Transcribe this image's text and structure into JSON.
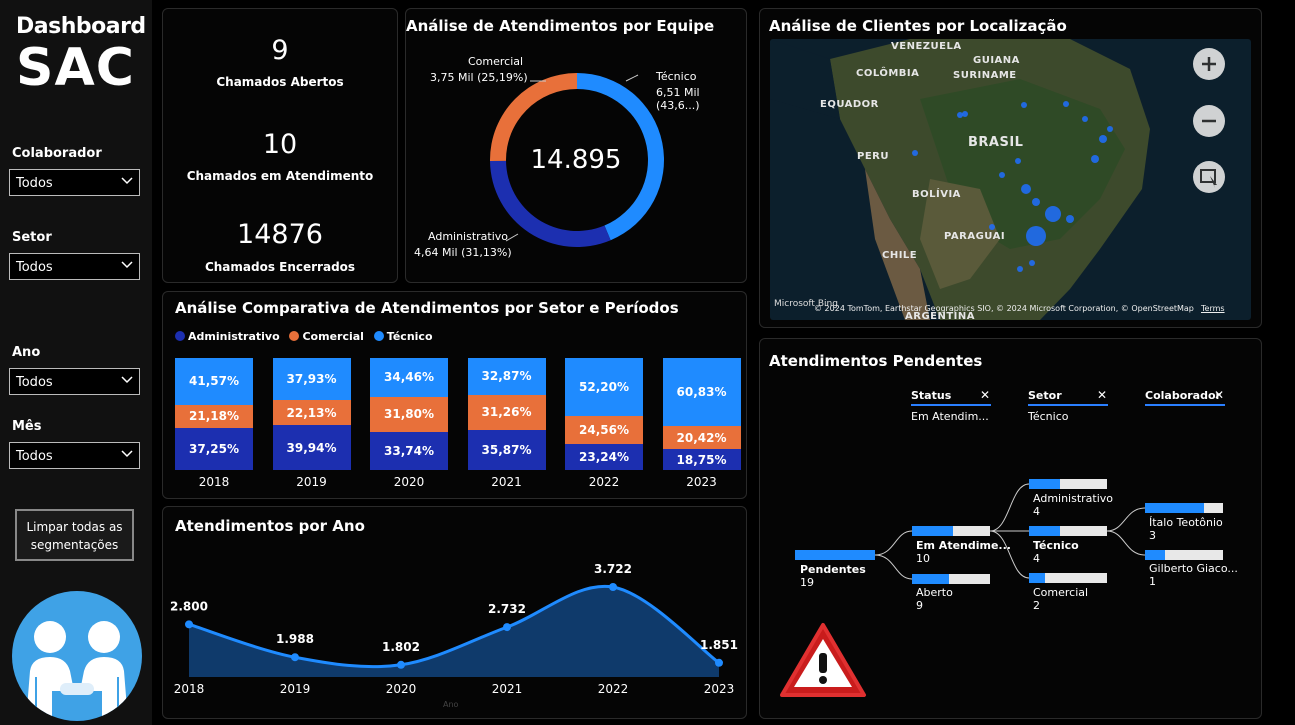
{
  "sidebar": {
    "title_top": "Dashboard",
    "title_main": "SAC",
    "filters": [
      {
        "label": "Colaborador",
        "value": "Todos"
      },
      {
        "label": "Setor",
        "value": "Todos"
      },
      {
        "label": "Ano",
        "value": "Todos"
      },
      {
        "label": "Mês",
        "value": "Todos"
      }
    ],
    "clear_button": "Limpar todas as segmentações"
  },
  "kpis": [
    {
      "value": "9",
      "label": "Chamados Abertos"
    },
    {
      "value": "10",
      "label": "Chamados em Atendimento"
    },
    {
      "value": "14876",
      "label": "Chamados Encerrados"
    }
  ],
  "donut": {
    "title": "Análise de Atendimentos por Equipe",
    "center": "14.895",
    "slices": [
      {
        "name": "Técnico",
        "label": "6,51 Mil (43,6...)",
        "pct": 43.68,
        "color": "#1f8bff"
      },
      {
        "name": "Administrativo",
        "label": "4,64 Mil (31,13%)",
        "pct": 31.13,
        "color": "#1c2fb0"
      },
      {
        "name": "Comercial",
        "label": "3,75 Mil (25,19%)",
        "pct": 25.19,
        "color": "#e8703a"
      }
    ]
  },
  "map": {
    "title": "Análise de Clientes por Localização",
    "countries": [
      "VENEZUELA",
      "GUIANA",
      "COLÔMBIA",
      "SURINAME",
      "EQUADOR",
      "PERU",
      "BRASIL",
      "BOLÍVIA",
      "PARAGUAI",
      "CHILE",
      "ARGENTINA"
    ],
    "attribution": "© 2024 TomTom, Earthstar Geographics SIO, © 2024 Microsoft Corporation, © OpenStreetMap",
    "terms": "Terms",
    "brand": "Microsoft Bing"
  },
  "stacked": {
    "title": "Análise Comparativa de Atendimentos por Setor e Períodos",
    "legend": [
      {
        "name": "Administrativo",
        "color": "#1c2fb0"
      },
      {
        "name": "Comercial",
        "color": "#e8703a"
      },
      {
        "name": "Técnico",
        "color": "#1f8bff"
      }
    ],
    "years": [
      {
        "year": "2018",
        "adm": "37,25%",
        "com": "21,18%",
        "tec": "41,57%",
        "a": 37.25,
        "c": 21.18,
        "t": 41.57
      },
      {
        "year": "2019",
        "adm": "39,94%",
        "com": "22,13%",
        "tec": "37,93%",
        "a": 39.94,
        "c": 22.13,
        "t": 37.93
      },
      {
        "year": "2020",
        "adm": "33,74%",
        "com": "31,80%",
        "tec": "34,46%",
        "a": 33.74,
        "c": 31.8,
        "t": 34.46
      },
      {
        "year": "2021",
        "adm": "35,87%",
        "com": "31,26%",
        "tec": "32,87%",
        "a": 35.87,
        "c": 31.26,
        "t": 32.87
      },
      {
        "year": "2022",
        "adm": "23,24%",
        "com": "24,56%",
        "tec": "52,20%",
        "a": 23.24,
        "c": 24.56,
        "t": 52.2
      },
      {
        "year": "2023",
        "adm": "18,75%",
        "com": "20,42%",
        "tec": "60,83%",
        "a": 18.75,
        "c": 20.42,
        "t": 60.83
      }
    ]
  },
  "chart_data": {
    "type": "area",
    "title": "Atendimentos por Ano",
    "xlabel": "Ano",
    "categories": [
      "2018",
      "2019",
      "2020",
      "2021",
      "2022",
      "2023"
    ],
    "values": [
      2800,
      1988,
      1802,
      2732,
      3722,
      1851
    ],
    "labels": [
      "2.800",
      "1.988",
      "1.802",
      "2.732",
      "3.722",
      "1.851"
    ]
  },
  "pending": {
    "title": "Atendimentos Pendentes",
    "headers": [
      {
        "title": "Status",
        "value": "Em Atendim..."
      },
      {
        "title": "Setor",
        "value": "Técnico"
      },
      {
        "title": "Colaborador",
        "value": ""
      }
    ],
    "root": {
      "label": "Pendentes",
      "count": "19"
    },
    "status": [
      {
        "label": "Em Atendime...",
        "count": "10",
        "fill": 0.53
      },
      {
        "label": "Aberto",
        "count": "9",
        "fill": 0.47
      }
    ],
    "setor": [
      {
        "label": "Administrativo",
        "count": "4",
        "fill": 0.4
      },
      {
        "label": "Técnico",
        "count": "4",
        "fill": 0.4
      },
      {
        "label": "Comercial",
        "count": "2",
        "fill": 0.2
      }
    ],
    "colab": [
      {
        "label": "Ítalo Teotônio",
        "count": "3",
        "fill": 0.75
      },
      {
        "label": "Gilberto Giaco...",
        "count": "1",
        "fill": 0.25
      }
    ]
  }
}
